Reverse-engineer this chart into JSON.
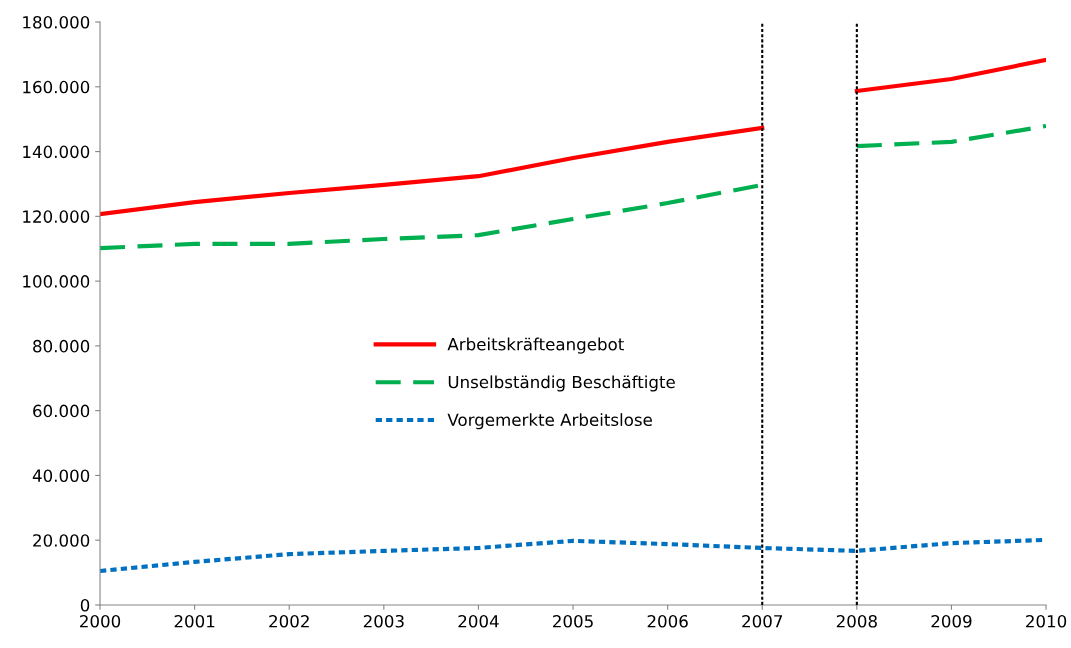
{
  "chart_data": {
    "type": "line",
    "xlim": [
      2000,
      2010
    ],
    "xticks": [
      2000,
      2001,
      2002,
      2003,
      2004,
      2005,
      2006,
      2007,
      2008,
      2009,
      2010
    ],
    "ylim": [
      0,
      180000
    ],
    "yticks": [
      {
        "value": 0,
        "label": "0"
      },
      {
        "value": 20000,
        "label": "20.000"
      },
      {
        "value": 40000,
        "label": "40.000"
      },
      {
        "value": 60000,
        "label": "60.000"
      },
      {
        "value": 80000,
        "label": "80.000"
      },
      {
        "value": 100000,
        "label": "100.000"
      },
      {
        "value": 120000,
        "label": "120.000"
      },
      {
        "value": 140000,
        "label": "140.000"
      },
      {
        "value": 160000,
        "label": "160.000"
      },
      {
        "value": 180000,
        "label": "180.000"
      }
    ],
    "series": [
      {
        "name": "Arbeitskräfteangebot",
        "color": "#ff0000",
        "line_style": "solid",
        "x": [
          2000,
          2001,
          2002,
          2003,
          2004,
          2005,
          2006,
          2007
        ],
        "values": [
          120700,
          124400,
          127200,
          129700,
          132400,
          138000,
          143000,
          147300
        ]
      },
      {
        "name": "Unselbständig Beschäftigte",
        "color": "#00b050",
        "line_style": "dashed",
        "x": [
          2000,
          2001,
          2002,
          2003,
          2004,
          2005,
          2006,
          2007
        ],
        "values": [
          110200,
          111500,
          111500,
          113000,
          114200,
          119200,
          124100,
          129700
        ]
      },
      {
        "name": "Vorgemerkte Arbeitslose",
        "color": "#0070c0",
        "line_style": "dotted",
        "x": [
          2000,
          2001,
          2002,
          2003,
          2004,
          2005,
          2006,
          2007,
          2008,
          2009,
          2010
        ],
        "values": [
          10500,
          13300,
          15700,
          16700,
          17600,
          19800,
          18800,
          17600,
          16700,
          19100,
          20100
        ]
      },
      {
        "color": "#ff0000",
        "line_style": "solid",
        "x": [
          2008,
          2009,
          2010
        ],
        "values": [
          158700,
          162400,
          168300
        ]
      },
      {
        "color": "#00b050",
        "line_style": "dashed",
        "x": [
          2008,
          2009,
          2010
        ],
        "values": [
          141700,
          143000,
          147900
        ]
      }
    ],
    "ref_lines": [
      {
        "axis": "x",
        "value": 2007,
        "color": "#000000",
        "line_style": "dotted"
      },
      {
        "axis": "x",
        "value": 2008,
        "color": "#000000",
        "line_style": "dotted"
      }
    ],
    "legend": "center",
    "grid": false,
    "marker": "none"
  }
}
